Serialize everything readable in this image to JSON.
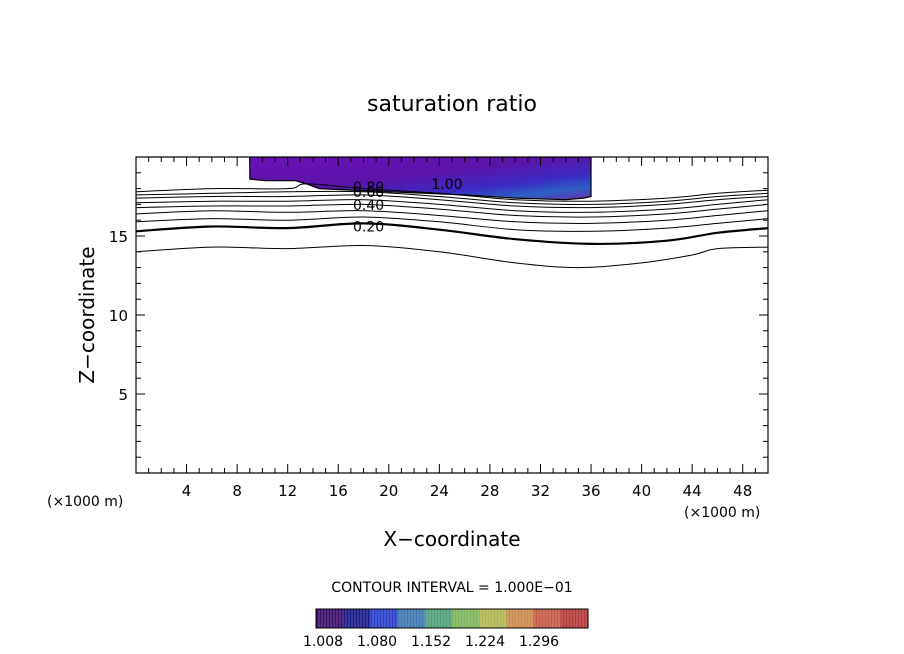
{
  "chart_data": {
    "type": "contour",
    "title": "saturation ratio",
    "xlabel": "X−coordinate",
    "ylabel": "Z−coordinate",
    "x_unit_left": "(×1000 m)",
    "x_unit_right": "(×1000 m)",
    "xlim": [
      0,
      50
    ],
    "ylim": [
      0,
      20
    ],
    "xticks": [
      4,
      8,
      12,
      16,
      20,
      24,
      28,
      32,
      36,
      40,
      44,
      48
    ],
    "yticks": [
      5,
      10,
      15
    ],
    "contour_interval_text": "CONTOUR INTERVAL = 1.000E−01",
    "contour_labels": [
      "0.80",
      "0.60",
      "0.40",
      "0.20",
      "1.00"
    ],
    "contours": [
      {
        "level": 0.1,
        "heavy": false,
        "x": [
          0,
          6,
          12,
          18,
          24,
          30,
          35,
          40,
          44,
          46,
          50
        ],
        "y": [
          14.0,
          14.3,
          14.2,
          14.4,
          14.0,
          13.3,
          13.0,
          13.3,
          13.8,
          14.2,
          14.3
        ]
      },
      {
        "level": 0.2,
        "heavy": true,
        "x": [
          0,
          6,
          12,
          18,
          24,
          30,
          36,
          42,
          46,
          50
        ],
        "y": [
          15.3,
          15.6,
          15.5,
          15.8,
          15.4,
          14.8,
          14.5,
          14.7,
          15.2,
          15.5
        ]
      },
      {
        "level": 0.3,
        "heavy": false,
        "x": [
          0,
          6,
          12,
          18,
          24,
          30,
          36,
          42,
          46,
          50
        ],
        "y": [
          15.9,
          16.1,
          16.0,
          16.2,
          15.9,
          15.4,
          15.3,
          15.5,
          15.8,
          16.1
        ]
      },
      {
        "level": 0.4,
        "heavy": false,
        "x": [
          0,
          6,
          12,
          18,
          24,
          30,
          36,
          42,
          46,
          50
        ],
        "y": [
          16.4,
          16.6,
          16.5,
          16.6,
          16.3,
          15.9,
          15.8,
          16.0,
          16.3,
          16.6
        ]
      },
      {
        "level": 0.5,
        "heavy": false,
        "x": [
          0,
          6,
          12,
          18,
          24,
          30,
          36,
          42,
          46,
          50
        ],
        "y": [
          16.8,
          16.9,
          16.9,
          17.0,
          16.7,
          16.3,
          16.2,
          16.4,
          16.7,
          17.0
        ]
      },
      {
        "level": 0.6,
        "heavy": false,
        "x": [
          0,
          6,
          12,
          18,
          24,
          30,
          36,
          42,
          46,
          50
        ],
        "y": [
          17.1,
          17.2,
          17.2,
          17.3,
          17.0,
          16.6,
          16.5,
          16.7,
          17.0,
          17.3
        ]
      },
      {
        "level": 0.7,
        "heavy": false,
        "x": [
          0,
          6,
          12,
          18,
          24,
          30,
          36,
          42,
          46,
          50
        ],
        "y": [
          17.4,
          17.5,
          17.5,
          17.6,
          17.3,
          16.9,
          16.8,
          17.0,
          17.3,
          17.5
        ]
      },
      {
        "level": 0.8,
        "heavy": false,
        "x": [
          0,
          6,
          12,
          18,
          24,
          30,
          36,
          42,
          46,
          50
        ],
        "y": [
          17.6,
          17.7,
          17.8,
          17.8,
          17.5,
          17.1,
          17.0,
          17.2,
          17.5,
          17.7
        ]
      },
      {
        "level": 0.9,
        "heavy": false,
        "x": [
          0,
          6,
          12,
          13.5,
          18,
          24,
          30,
          36,
          42,
          46,
          50
        ],
        "y": [
          17.8,
          18.0,
          18.0,
          18.3,
          18.0,
          17.7,
          17.3,
          17.2,
          17.4,
          17.7,
          17.9
        ]
      }
    ],
    "filled_region": {
      "level_min": 1.0,
      "x": [
        9,
        9,
        10.2,
        12.6,
        13.5,
        14.5,
        20,
        26,
        30,
        34,
        35.4,
        36,
        36,
        9
      ],
      "y": [
        20,
        18.6,
        18.5,
        18.5,
        18.3,
        18.0,
        17.8,
        17.6,
        17.4,
        17.3,
        17.4,
        17.5,
        20,
        20
      ]
    },
    "colorbar": {
      "colors": [
        "#3a0f6b",
        "#1b1a8a",
        "#2a3ec9",
        "#3d78b0",
        "#4fa07a",
        "#7fb55a",
        "#b0b552",
        "#c98a4c",
        "#c45a45",
        "#b43a3a"
      ],
      "tick_labels": [
        "1.008",
        "1.080",
        "1.152",
        "1.224",
        "1.296"
      ]
    }
  }
}
